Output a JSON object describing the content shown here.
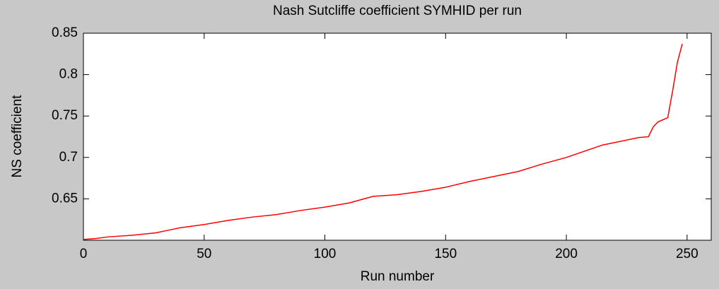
{
  "chart_data": {
    "type": "line",
    "title": "Nash Sutcliffe coefficient SYMHID per run",
    "x_label": "Run number",
    "y_label": "NS coefficient",
    "x": [
      0,
      5,
      10,
      20,
      30,
      35,
      40,
      50,
      60,
      70,
      80,
      90,
      100,
      110,
      120,
      130,
      140,
      150,
      160,
      170,
      180,
      190,
      200,
      210,
      215,
      220,
      230,
      234,
      236,
      238,
      242,
      244,
      246,
      248
    ],
    "series": [
      {
        "color": "#ff0000",
        "values": [
          0.601,
          0.602,
          0.604,
          0.606,
          0.609,
          0.612,
          0.615,
          0.619,
          0.624,
          0.628,
          0.631,
          0.636,
          0.64,
          0.645,
          0.653,
          0.655,
          0.659,
          0.664,
          0.671,
          0.677,
          0.683,
          0.692,
          0.7,
          0.71,
          0.715,
          0.718,
          0.724,
          0.725,
          0.737,
          0.743,
          0.748,
          0.78,
          0.815,
          0.837
        ]
      }
    ],
    "xlim": [
      0,
      260
    ],
    "ylim": [
      0.6,
      0.85
    ],
    "xticks": [
      0,
      50,
      100,
      150,
      200,
      250
    ],
    "yticks": [
      0.65,
      0.7,
      0.75,
      0.8,
      0.85
    ]
  }
}
